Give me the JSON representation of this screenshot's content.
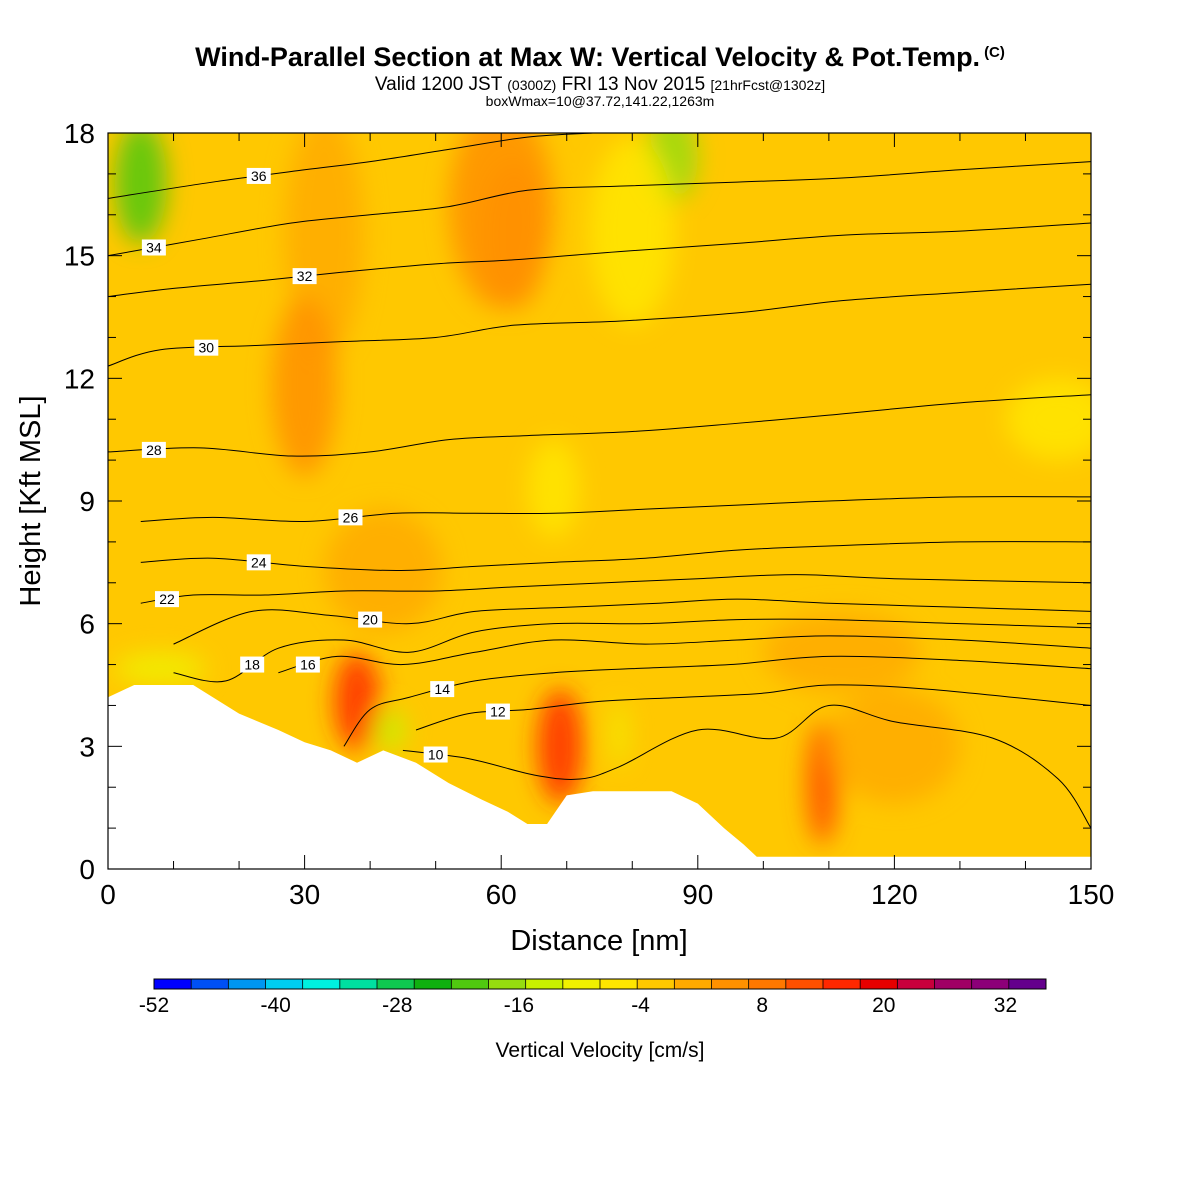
{
  "header": {
    "title": "Wind-Parallel Section at Max W: Vertical Velocity & Pot.Temp.",
    "copyright": "(C)",
    "valid_prefix": "Valid 1200 JST",
    "valid_utc": "(0300Z)",
    "valid_date": "FRI 13 Nov 2015",
    "forecast": "[21hrFcst@1302z]",
    "box": "boxWmax=10@37.72,141.22,1263m"
  },
  "chart_data": {
    "type": "heatmap",
    "xlabel": "Distance [nm]",
    "ylabel": "Height [Kft MSL]",
    "xlim": [
      0,
      150
    ],
    "ylim": [
      0,
      18
    ],
    "x_ticks": [
      0,
      30,
      60,
      90,
      120,
      150
    ],
    "y_ticks": [
      0,
      3,
      6,
      9,
      12,
      15,
      18
    ],
    "colorbar": {
      "label": "Vertical Velocity [cm/s]",
      "tick_labels": [
        "-52",
        "-40",
        "-28",
        "-16",
        "-4",
        "8",
        "20",
        "32"
      ],
      "tick_values": [
        -52,
        -40,
        -28,
        -16,
        -4,
        8,
        20,
        32
      ],
      "range": [
        -52,
        36
      ],
      "step": 4,
      "colors": [
        "#0000ff",
        "#0050f5",
        "#0096f0",
        "#00cdf0",
        "#00f0e0",
        "#00e0a0",
        "#10c850",
        "#10b010",
        "#50c810",
        "#96dc10",
        "#c8f000",
        "#f0f000",
        "#ffe600",
        "#ffc800",
        "#ffaa00",
        "#ff9100",
        "#ff7800",
        "#ff5000",
        "#ff2800",
        "#e60000",
        "#c8003c",
        "#a00064",
        "#8c0078",
        "#64008c"
      ]
    },
    "terrain_kft": [
      [
        0,
        4.2
      ],
      [
        4,
        4.5
      ],
      [
        13,
        4.5
      ],
      [
        20,
        3.8
      ],
      [
        26,
        3.4
      ],
      [
        30,
        3.1
      ],
      [
        34,
        2.9
      ],
      [
        38,
        2.6
      ],
      [
        42,
        2.9
      ],
      [
        47,
        2.6
      ],
      [
        52,
        2.1
      ],
      [
        57,
        1.7
      ],
      [
        61,
        1.4
      ],
      [
        64,
        1.1
      ],
      [
        67,
        1.1
      ],
      [
        70,
        1.8
      ],
      [
        74,
        1.9
      ],
      [
        78,
        1.9
      ],
      [
        86,
        1.9
      ],
      [
        90,
        1.6
      ],
      [
        94,
        1.0
      ],
      [
        97,
        0.6
      ],
      [
        99,
        0.3
      ],
      [
        150,
        0.3
      ]
    ],
    "theta_contours": [
      {
        "label": "10",
        "points": [
          [
            45,
            2.9
          ],
          [
            55,
            2.7
          ],
          [
            65,
            2.3
          ],
          [
            72,
            2.2
          ],
          [
            78,
            2.5
          ],
          [
            90,
            3.4
          ],
          [
            102,
            3.2
          ],
          [
            110,
            4.0
          ],
          [
            120,
            3.6
          ],
          [
            135,
            3.2
          ],
          [
            145,
            2.2
          ],
          [
            150,
            1.0
          ]
        ]
      },
      {
        "label": "12",
        "points": [
          [
            47,
            3.4
          ],
          [
            55,
            3.8
          ],
          [
            64,
            3.9
          ],
          [
            75,
            4.1
          ],
          [
            88,
            4.2
          ],
          [
            100,
            4.3
          ],
          [
            110,
            4.5
          ],
          [
            125,
            4.4
          ],
          [
            150,
            4.0
          ]
        ]
      },
      {
        "label": "14",
        "points": [
          [
            36,
            3.0
          ],
          [
            40,
            3.9
          ],
          [
            46,
            4.2
          ],
          [
            56,
            4.6
          ],
          [
            68,
            4.8
          ],
          [
            80,
            4.9
          ],
          [
            95,
            5.0
          ],
          [
            110,
            5.2
          ],
          [
            130,
            5.1
          ],
          [
            150,
            4.9
          ]
        ]
      },
      {
        "label": "16",
        "points": [
          [
            26,
            4.8
          ],
          [
            35,
            5.2
          ],
          [
            45,
            5.0
          ],
          [
            56,
            5.3
          ],
          [
            68,
            5.6
          ],
          [
            82,
            5.5
          ],
          [
            96,
            5.6
          ],
          [
            110,
            5.7
          ],
          [
            130,
            5.6
          ],
          [
            150,
            5.4
          ]
        ]
      },
      {
        "label": "18",
        "points": [
          [
            10,
            4.8
          ],
          [
            18,
            4.6
          ],
          [
            26,
            5.4
          ],
          [
            36,
            5.6
          ],
          [
            46,
            5.3
          ],
          [
            56,
            5.8
          ],
          [
            68,
            6.0
          ],
          [
            82,
            6.0
          ],
          [
            96,
            6.1
          ],
          [
            110,
            6.1
          ],
          [
            130,
            6.0
          ],
          [
            150,
            5.9
          ]
        ]
      },
      {
        "label": "20",
        "points": [
          [
            10,
            5.5
          ],
          [
            22,
            6.3
          ],
          [
            34,
            6.2
          ],
          [
            46,
            6.0
          ],
          [
            56,
            6.3
          ],
          [
            70,
            6.4
          ],
          [
            84,
            6.5
          ],
          [
            96,
            6.6
          ],
          [
            110,
            6.5
          ],
          [
            130,
            6.4
          ],
          [
            150,
            6.3
          ]
        ]
      },
      {
        "label": "22",
        "points": [
          [
            5,
            6.5
          ],
          [
            13,
            6.7
          ],
          [
            24,
            6.7
          ],
          [
            36,
            6.8
          ],
          [
            50,
            6.8
          ],
          [
            62,
            6.9
          ],
          [
            76,
            7.0
          ],
          [
            90,
            7.1
          ],
          [
            105,
            7.2
          ],
          [
            120,
            7.1
          ],
          [
            150,
            7.0
          ]
        ]
      },
      {
        "label": "24",
        "points": [
          [
            5,
            7.5
          ],
          [
            16,
            7.6
          ],
          [
            30,
            7.4
          ],
          [
            44,
            7.3
          ],
          [
            56,
            7.4
          ],
          [
            68,
            7.5
          ],
          [
            82,
            7.6
          ],
          [
            96,
            7.8
          ],
          [
            110,
            7.9
          ],
          [
            130,
            8.0
          ],
          [
            150,
            8.0
          ]
        ]
      },
      {
        "label": "26",
        "points": [
          [
            5,
            8.5
          ],
          [
            16,
            8.6
          ],
          [
            30,
            8.5
          ],
          [
            44,
            8.7
          ],
          [
            56,
            8.7
          ],
          [
            68,
            8.7
          ],
          [
            82,
            8.8
          ],
          [
            96,
            8.9
          ],
          [
            110,
            9.0
          ],
          [
            130,
            9.1
          ],
          [
            150,
            9.1
          ]
        ]
      },
      {
        "label": "28",
        "points": [
          [
            0,
            10.2
          ],
          [
            14,
            10.3
          ],
          [
            28,
            10.1
          ],
          [
            40,
            10.2
          ],
          [
            52,
            10.5
          ],
          [
            64,
            10.6
          ],
          [
            80,
            10.7
          ],
          [
            96,
            10.9
          ],
          [
            110,
            11.1
          ],
          [
            130,
            11.4
          ],
          [
            150,
            11.6
          ]
        ]
      },
      {
        "label": "30",
        "points": [
          [
            0,
            12.3
          ],
          [
            8,
            12.7
          ],
          [
            22,
            12.8
          ],
          [
            36,
            12.9
          ],
          [
            50,
            13.0
          ],
          [
            62,
            13.3
          ],
          [
            78,
            13.4
          ],
          [
            96,
            13.6
          ],
          [
            112,
            13.9
          ],
          [
            130,
            14.1
          ],
          [
            150,
            14.3
          ]
        ]
      },
      {
        "label": "32",
        "points": [
          [
            0,
            14.0
          ],
          [
            10,
            14.2
          ],
          [
            24,
            14.4
          ],
          [
            36,
            14.6
          ],
          [
            50,
            14.8
          ],
          [
            62,
            14.9
          ],
          [
            78,
            15.1
          ],
          [
            96,
            15.3
          ],
          [
            112,
            15.5
          ],
          [
            130,
            15.6
          ],
          [
            150,
            15.8
          ]
        ]
      },
      {
        "label": "34",
        "points": [
          [
            0,
            15.0
          ],
          [
            14,
            15.4
          ],
          [
            28,
            15.8
          ],
          [
            40,
            16.0
          ],
          [
            52,
            16.2
          ],
          [
            64,
            16.6
          ],
          [
            78,
            16.7
          ],
          [
            96,
            16.8
          ],
          [
            112,
            16.9
          ],
          [
            130,
            17.1
          ],
          [
            150,
            17.3
          ]
        ]
      },
      {
        "label": "36",
        "points": [
          [
            0,
            16.4
          ],
          [
            16,
            16.8
          ],
          [
            30,
            17.1
          ],
          [
            40,
            17.3
          ],
          [
            52,
            17.6
          ],
          [
            64,
            17.9
          ],
          [
            74,
            18.0
          ]
        ]
      }
    ],
    "velocity_blobs": [
      {
        "x": 38,
        "y": 4.1,
        "rx": 3.5,
        "ry": 1.2,
        "w": 22
      },
      {
        "x": 69,
        "y": 3.0,
        "rx": 3.5,
        "ry": 1.4,
        "w": 22
      },
      {
        "x": 109,
        "y": 2.1,
        "rx": 2.5,
        "ry": 1.5,
        "w": 18
      },
      {
        "x": 5,
        "y": 16.8,
        "rx": 4.0,
        "ry": 1.5,
        "w": -18
      },
      {
        "x": 86,
        "y": 17.4,
        "rx": 4.0,
        "ry": 1.1,
        "w": -14
      },
      {
        "x": 8,
        "y": 4.9,
        "rx": 7.0,
        "ry": 0.4,
        "w": -8
      },
      {
        "x": 43,
        "y": 3.4,
        "rx": 2.5,
        "ry": 0.5,
        "w": -10
      },
      {
        "x": 78,
        "y": 3.3,
        "rx": 1.2,
        "ry": 0.8,
        "w": -6
      },
      {
        "x": 80,
        "y": 15.6,
        "rx": 6.5,
        "ry": 2.3,
        "w": -4
      },
      {
        "x": 60,
        "y": 16.2,
        "rx": 8.0,
        "ry": 2.5,
        "w": 8
      },
      {
        "x": 33,
        "y": 15.5,
        "rx": 6.0,
        "ry": 3.0,
        "w": 6
      },
      {
        "x": 30,
        "y": 11.8,
        "rx": 5.0,
        "ry": 2.2,
        "w": 8
      },
      {
        "x": 42,
        "y": 7.3,
        "rx": 9.0,
        "ry": 1.5,
        "w": 4
      },
      {
        "x": 112,
        "y": 5.3,
        "rx": 12.0,
        "ry": 1.0,
        "w": 6
      },
      {
        "x": 120,
        "y": 3.0,
        "rx": 10.0,
        "ry": 1.4,
        "w": 6
      },
      {
        "x": 68,
        "y": 9.3,
        "rx": 4.0,
        "ry": 1.2,
        "w": -4
      },
      {
        "x": 62,
        "y": 15.5,
        "rx": 5.0,
        "ry": 1.8,
        "w": 10
      },
      {
        "x": 145,
        "y": 11.0,
        "rx": 8.0,
        "ry": 1.0,
        "w": -4
      }
    ]
  }
}
